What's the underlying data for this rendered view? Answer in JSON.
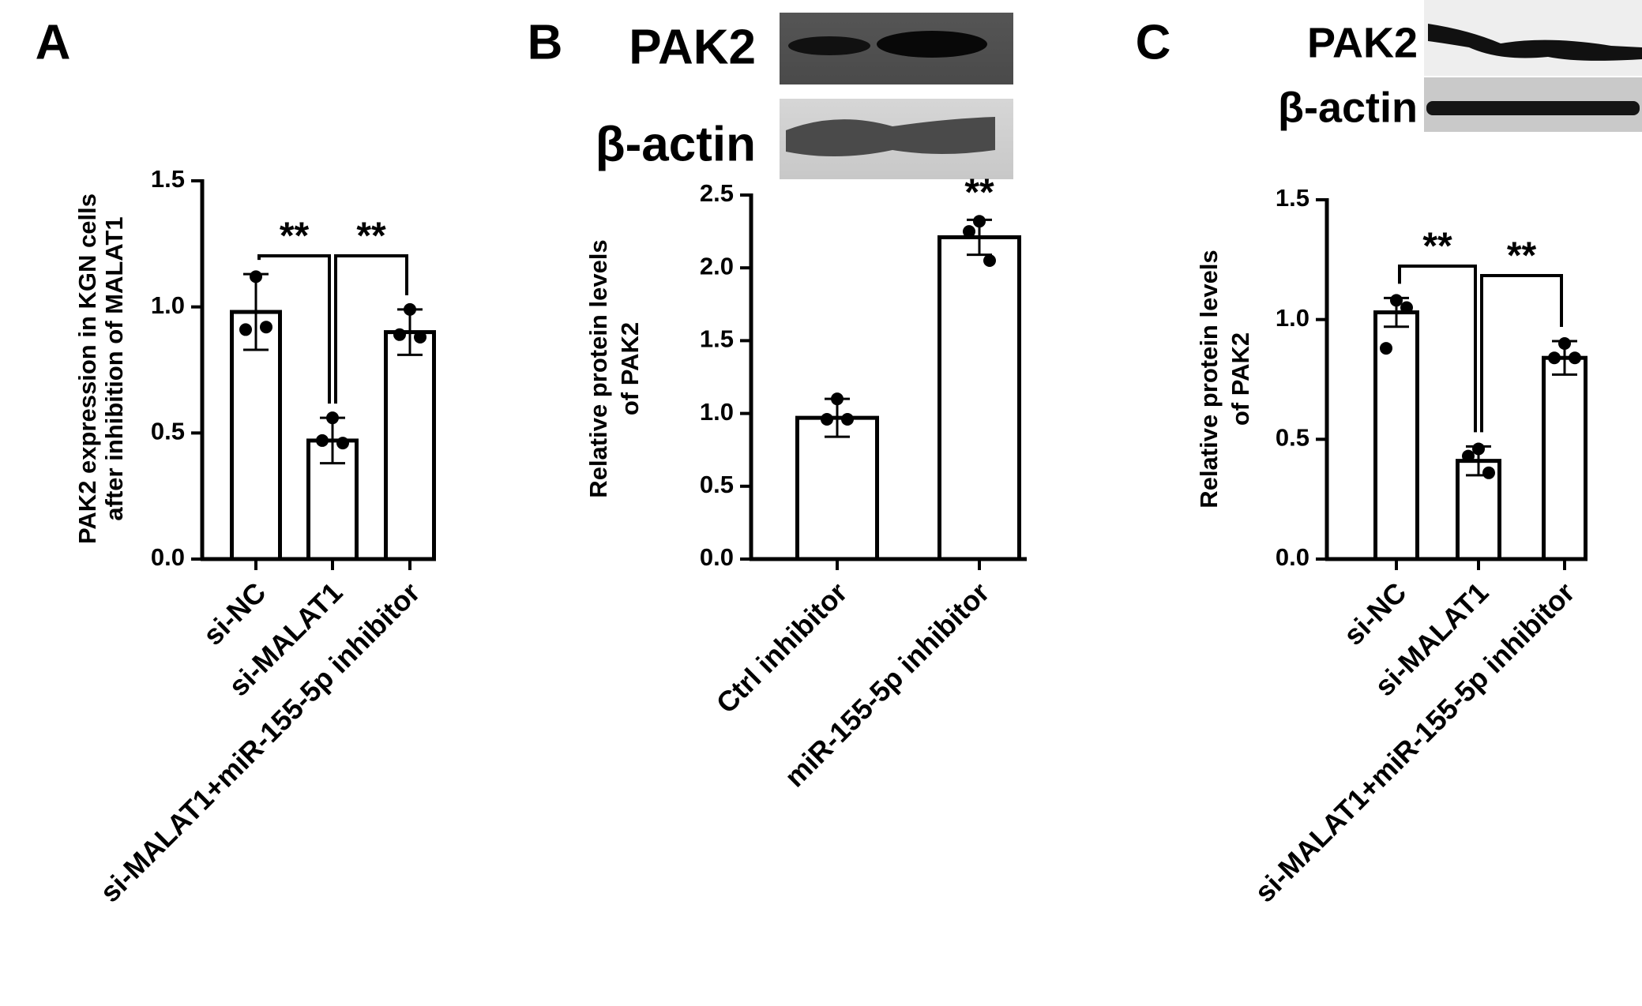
{
  "chart_data": [
    {
      "type": "bar",
      "panel": "A",
      "y_label": [
        "PAK2 expression in KGN cells",
        "after inhibition of MALAT1"
      ],
      "categories": [
        "si-NC",
        "si-MALAT1",
        "si-MALAT1+miR-155-5p inhibitor"
      ],
      "values": [
        0.98,
        0.47,
        0.9
      ],
      "errors": [
        0.15,
        0.09,
        0.09
      ],
      "points": [
        [
          1.12,
          0.91,
          0.92
        ],
        [
          0.56,
          0.47,
          0.46
        ],
        [
          0.99,
          0.89,
          0.88
        ]
      ],
      "annotations": [
        "**",
        "**"
      ],
      "ylim": [
        0,
        1.5
      ],
      "yticks": [
        {
          "value": 0,
          "label": "0.0"
        },
        0.5,
        {
          "value": 1,
          "label": "1.0"
        },
        1.5
      ],
      "color": "#ffffff"
    },
    {
      "type": "bar",
      "panel": "B",
      "blot_labels": [
        "PAK2",
        "β-actin"
      ],
      "y_label": [
        "Relative protein levels",
        "of PAK2"
      ],
      "categories": [
        "Ctrl inhibitor",
        "miR-155-5p inhibitor"
      ],
      "values": [
        0.97,
        2.21
      ],
      "errors": [
        0.13,
        0.12
      ],
      "points": [
        [
          1.1,
          0.96,
          0.96
        ],
        [
          2.32,
          2.25,
          2.05
        ]
      ],
      "annotations": [
        "**"
      ],
      "ylim": [
        0,
        2.5
      ],
      "yticks": [
        {
          "value": 0,
          "label": "0.0"
        },
        0.5,
        {
          "value": 1,
          "label": "1.0"
        },
        1.5,
        {
          "value": 2,
          "label": "2.0"
        },
        2.5
      ],
      "color": "#ffffff"
    },
    {
      "type": "bar",
      "panel": "C",
      "blot_labels": [
        "PAK2",
        "β-actin"
      ],
      "y_label": [
        "Relative protein levels",
        "of PAK2"
      ],
      "categories": [
        "si-NC",
        "si-MALAT1",
        "si-MALAT1+miR-155-5p inhibitor"
      ],
      "values": [
        1.03,
        0.41,
        0.84
      ],
      "errors": [
        0.06,
        0.06,
        0.07
      ],
      "points": [
        [
          1.08,
          0.88,
          1.05
        ],
        [
          0.46,
          0.43,
          0.36
        ],
        [
          0.9,
          0.84,
          0.84
        ]
      ],
      "annotations": [
        "**",
        "**"
      ],
      "ylim": [
        0,
        1.5
      ],
      "yticks": [
        {
          "value": 0,
          "label": "0.0"
        },
        0.5,
        {
          "value": 1,
          "label": "1.0"
        },
        1.5
      ],
      "color": "#ffffff"
    }
  ]
}
